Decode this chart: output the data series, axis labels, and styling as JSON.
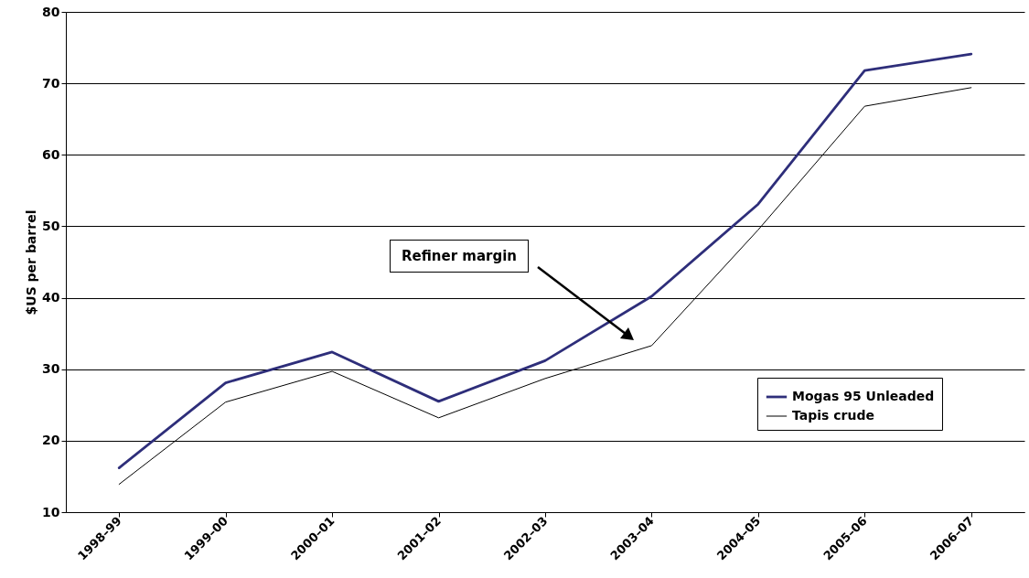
{
  "chart_data": {
    "type": "line",
    "ylabel": "$US per barrel",
    "categories": [
      "1998–99",
      "1999–00",
      "2000–01",
      "2001–02",
      "2002–03",
      "2003–04",
      "2004–05",
      "2005–06",
      "2006–07"
    ],
    "series": [
      {
        "name": "Mogas 95 Unleaded",
        "color": "#2e2e7a",
        "values": [
          16.2,
          28.1,
          32.4,
          25.5,
          31.2,
          40.2,
          53.1,
          71.8,
          74.1
        ]
      },
      {
        "name": "Tapis crude",
        "color": "#000000",
        "values": [
          13.9,
          25.4,
          29.7,
          23.2,
          28.7,
          33.3,
          49.5,
          66.8,
          69.4
        ]
      }
    ],
    "ylim": [
      10,
      80
    ],
    "yticks": [
      10,
      20,
      30,
      40,
      50,
      60,
      70,
      80
    ],
    "grid": "y",
    "legend": "bottom right",
    "annotations": [
      "Refiner margin"
    ]
  }
}
